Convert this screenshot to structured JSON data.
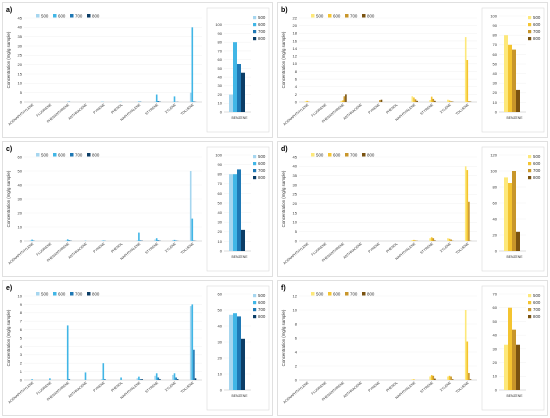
{
  "chart_data": [
    {
      "panel": "a)",
      "type": "bar",
      "ylabel": "Concentration (mg/g sample)",
      "ylim": [
        0,
        45
      ],
      "yticks": [
        0,
        5,
        10,
        15,
        20,
        25,
        30,
        35,
        40,
        45
      ],
      "categories": [
        "ACENAPHTHYLENE",
        "FLUORENE",
        "PHENANTHRENE",
        "ANTHRACENE",
        "PYRENE",
        "PHENOL",
        "NAPHTHALENE",
        "STYRENE",
        "XYLENE",
        "TOLUENE"
      ],
      "series": [
        {
          "name": "500",
          "color": "#a6d6ef",
          "values": [
            0,
            0,
            0,
            0,
            0.3,
            0.2,
            0.1,
            0.3,
            0.2,
            5
          ]
        },
        {
          "name": "600",
          "color": "#41b6e6",
          "values": [
            0,
            0,
            0.1,
            0,
            0.1,
            0.1,
            0.3,
            4,
            3,
            40
          ]
        },
        {
          "name": "700",
          "color": "#1f78b4",
          "values": [
            0,
            0,
            0.2,
            0,
            0,
            0,
            0.2,
            0.5,
            0.1,
            0.3
          ]
        },
        {
          "name": "800",
          "color": "#0b3d66",
          "values": [
            0,
            0,
            0,
            0,
            0,
            0,
            0,
            0.2,
            0.1,
            0.1
          ]
        }
      ],
      "benzene": {
        "label": "BENZENE",
        "ylim": [
          0,
          110
        ],
        "yticks": [
          0,
          10,
          20,
          30,
          40,
          50,
          60,
          70,
          80,
          90,
          100
        ],
        "values": [
          20,
          80,
          55,
          45
        ]
      },
      "legend": [
        "500",
        "600",
        "700",
        "800"
      ]
    },
    {
      "panel": "b)",
      "type": "bar",
      "ylabel": "Concentration (mg/g sample)",
      "ylim": [
        0,
        22
      ],
      "yticks": [
        0,
        2,
        4,
        6,
        8,
        10,
        12,
        14,
        16,
        18,
        20,
        22
      ],
      "categories": [
        "ACENAPHTHYLENE",
        "FLUORENE",
        "PHENANTHRENE",
        "ANTHRACENE",
        "PYRENE",
        "PHENOL",
        "NAPHTHALENE",
        "STYRENE",
        "XYLENE",
        "TOLUENE"
      ],
      "series": [
        {
          "name": "500",
          "color": "#fde87a",
          "values": [
            0.2,
            0,
            0.3,
            0,
            0,
            0,
            1.5,
            0.5,
            0.6,
            17
          ]
        },
        {
          "name": "600",
          "color": "#f4c430",
          "values": [
            0.3,
            0,
            0.4,
            0,
            0,
            0,
            1.2,
            1.4,
            0.4,
            11
          ]
        },
        {
          "name": "700",
          "color": "#c8962a",
          "values": [
            0.1,
            0,
            1.5,
            0,
            0.5,
            0,
            0.7,
            0.8,
            0.2,
            0.2
          ]
        },
        {
          "name": "800",
          "color": "#7a5310",
          "values": [
            0,
            0,
            2,
            0,
            0.6,
            0,
            0.3,
            0.3,
            0.1,
            0.1
          ]
        }
      ],
      "benzene": {
        "label": "BENZENE",
        "ylim": [
          0,
          100
        ],
        "yticks": [
          0,
          10,
          20,
          30,
          40,
          50,
          60,
          70,
          80,
          90,
          100
        ],
        "values": [
          80,
          70,
          65,
          23
        ]
      },
      "legend": [
        "500",
        "600",
        "700",
        "800"
      ]
    },
    {
      "panel": "c)",
      "type": "bar",
      "ylabel": "Concentration (mg/g sample)",
      "ylim": [
        0,
        60
      ],
      "yticks": [
        0,
        10,
        20,
        30,
        40,
        50,
        60
      ],
      "categories": [
        "ACENAPHTHYLENE",
        "FLUORENE",
        "PHENANTHRENE",
        "ANTHRACENE",
        "PYRENE",
        "PHENOL",
        "NAPHTHALENE",
        "STYRENE",
        "XYLENE",
        "TOLUENE"
      ],
      "series": [
        {
          "name": "500",
          "color": "#a6d6ef",
          "values": [
            0.5,
            0,
            0.5,
            0,
            0.3,
            0,
            0.5,
            1,
            0.6,
            50
          ]
        },
        {
          "name": "600",
          "color": "#41b6e6",
          "values": [
            1,
            0,
            1.2,
            0.2,
            0.4,
            0,
            6,
            2,
            0.8,
            16
          ]
        },
        {
          "name": "700",
          "color": "#1f78b4",
          "values": [
            0.3,
            0,
            0.5,
            0,
            0.2,
            0,
            0.4,
            0.5,
            0.3,
            0.3
          ]
        },
        {
          "name": "800",
          "color": "#0b3d66",
          "values": [
            0,
            0,
            0.2,
            0,
            0,
            0,
            0.2,
            0.2,
            0.1,
            0.1
          ]
        }
      ],
      "benzene": {
        "label": "BENZENE",
        "ylim": [
          0,
          100
        ],
        "yticks": [
          0,
          10,
          20,
          30,
          40,
          50,
          60,
          70,
          80,
          90,
          100
        ],
        "values": [
          80,
          80,
          85,
          22
        ]
      },
      "legend": [
        "500",
        "600",
        "700",
        "800"
      ]
    },
    {
      "panel": "d)",
      "type": "bar",
      "ylabel": "Concentration (mg/g sample)",
      "ylim": [
        0,
        45
      ],
      "yticks": [
        0,
        5,
        10,
        15,
        20,
        25,
        30,
        35,
        40,
        45
      ],
      "categories": [
        "ACENAPHTHYLENE",
        "FLUORENE",
        "PHENANTHRENE",
        "ANTHRACENE",
        "PYRENE",
        "PHENOL",
        "NAPHTHALENE",
        "STYRENE",
        "XYLENE",
        "TOLUENE"
      ],
      "series": [
        {
          "name": "500",
          "color": "#fde87a",
          "values": [
            0,
            0,
            0,
            0,
            0,
            0,
            0.5,
            1.5,
            1.5,
            40
          ]
        },
        {
          "name": "600",
          "color": "#f4c430",
          "values": [
            0,
            0,
            0,
            0,
            0,
            0,
            0.6,
            2,
            1.2,
            38
          ]
        },
        {
          "name": "700",
          "color": "#c8962a",
          "values": [
            0,
            0,
            0,
            0,
            0,
            0,
            0.3,
            1.5,
            0.8,
            21
          ]
        },
        {
          "name": "800",
          "color": "#7a5310",
          "values": [
            0,
            0,
            0,
            0,
            0,
            0,
            0.1,
            0.3,
            0.1,
            0.1
          ]
        }
      ],
      "benzene": {
        "label": "BENZENE",
        "ylim": [
          0,
          120
        ],
        "yticks": [
          0,
          20,
          40,
          60,
          80,
          100,
          120
        ],
        "values": [
          92,
          85,
          100,
          24
        ]
      },
      "legend": [
        "500",
        "600",
        "700",
        "800"
      ]
    },
    {
      "panel": "e)",
      "type": "bar",
      "ylabel": "Concentration (mg/g sample)",
      "ylim": [
        0,
        10
      ],
      "yticks": [
        0,
        1,
        2,
        3,
        4,
        5,
        6,
        7,
        8,
        9,
        10
      ],
      "categories": [
        "ACENAPHTHYLENE",
        "FLUORENE",
        "PHENANTHRENE",
        "ANTHRACENE",
        "PYRENE",
        "PHENOL",
        "NAPHTHALENE",
        "STYRENE",
        "XYLENE",
        "TOLUENE"
      ],
      "series": [
        {
          "name": "500",
          "color": "#a6d6ef",
          "values": [
            0,
            0,
            0,
            0,
            0.1,
            0,
            0.2,
            0.5,
            0.6,
            8.8
          ]
        },
        {
          "name": "600",
          "color": "#41b6e6",
          "values": [
            0.1,
            0.2,
            6.5,
            0.9,
            2,
            0.3,
            0.4,
            0.8,
            0.8,
            9
          ]
        },
        {
          "name": "700",
          "color": "#1f78b4",
          "values": [
            0,
            0,
            0.1,
            0,
            0.1,
            0,
            0.1,
            0.3,
            0.3,
            3.6
          ]
        },
        {
          "name": "800",
          "color": "#0b3d66",
          "values": [
            0,
            0,
            0,
            0,
            0,
            0,
            0.1,
            0.1,
            0.1,
            0.2
          ]
        }
      ],
      "benzene": {
        "label": "BENZENE",
        "ylim": [
          0,
          60
        ],
        "yticks": [
          0,
          10,
          20,
          30,
          40,
          50,
          60
        ],
        "values": [
          47,
          48,
          46,
          32
        ]
      },
      "legend": [
        "500",
        "600",
        "700",
        "800"
      ]
    },
    {
      "panel": "f)",
      "type": "bar",
      "ylabel": "Concentration (mg/g sample)",
      "ylim": [
        0,
        12
      ],
      "yticks": [
        0,
        2,
        4,
        6,
        8,
        10,
        12
      ],
      "categories": [
        "ACENAPHTHYLENE",
        "FLUORENE",
        "PHENANTHRENE",
        "ANTHRACENE",
        "PYRENE",
        "PHENOL",
        "NAPHTHALENE",
        "STYRENE",
        "XYLENE",
        "TOLUENE"
      ],
      "series": [
        {
          "name": "500",
          "color": "#fde87a",
          "values": [
            0,
            0,
            0,
            0,
            0,
            0,
            0.1,
            0.5,
            0.5,
            10
          ]
        },
        {
          "name": "600",
          "color": "#f4c430",
          "values": [
            0,
            0,
            0,
            0,
            0,
            0,
            0.1,
            0.7,
            0.6,
            5.5
          ]
        },
        {
          "name": "700",
          "color": "#c8962a",
          "values": [
            0,
            0,
            0,
            0,
            0,
            0,
            0,
            0.6,
            0.5,
            1
          ]
        },
        {
          "name": "800",
          "color": "#7a5310",
          "values": [
            0,
            0,
            0,
            0,
            0,
            0,
            0,
            0.2,
            0.1,
            0.1
          ]
        }
      ],
      "benzene": {
        "label": "BENZENE",
        "ylim": [
          0,
          70
        ],
        "yticks": [
          0,
          10,
          20,
          30,
          40,
          50,
          60,
          70
        ],
        "values": [
          33,
          60,
          44,
          33
        ]
      },
      "legend": [
        "500",
        "600",
        "700",
        "800"
      ]
    }
  ]
}
